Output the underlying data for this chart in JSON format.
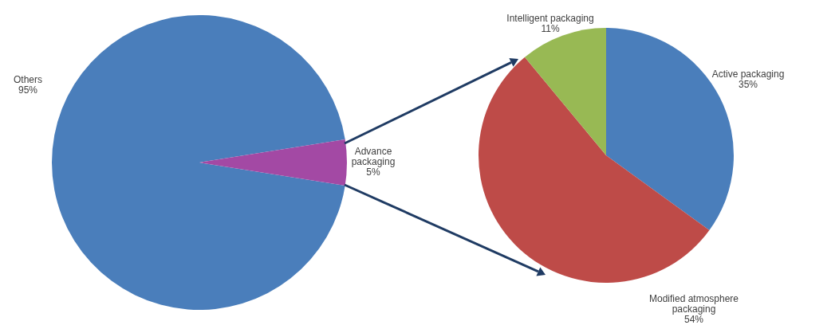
{
  "chart_data": [
    {
      "type": "pie",
      "categories": [
        "Others",
        "Advance packaging"
      ],
      "values": [
        95,
        5
      ],
      "colors": [
        "#4a7ebb",
        "#a349a4"
      ],
      "value_labels": [
        "95%",
        "5%"
      ]
    },
    {
      "type": "pie",
      "categories": [
        "Active packaging",
        "Modified atmosphere packaging",
        "Intelligent packaging"
      ],
      "values": [
        35,
        54,
        11
      ],
      "colors": [
        "#4a7ebb",
        "#be4b48",
        "#98b954"
      ],
      "value_labels": [
        "35%",
        "54%",
        "11%"
      ]
    }
  ]
}
